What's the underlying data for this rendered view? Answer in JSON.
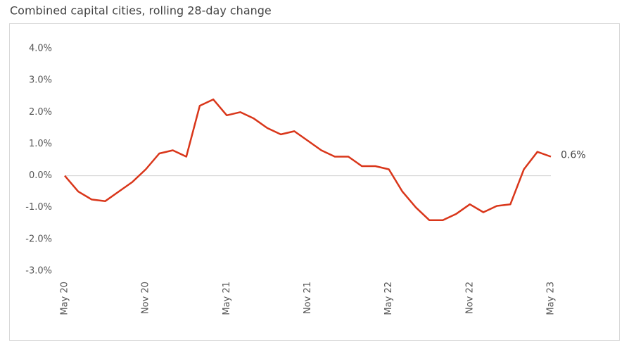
{
  "chart_data": {
    "type": "line",
    "title": "Combined capital cities, rolling 28-day change",
    "categories": [
      "May 20",
      null,
      null,
      null,
      null,
      null,
      "Nov 20",
      null,
      null,
      null,
      null,
      null,
      "May 21",
      null,
      null,
      null,
      null,
      null,
      "Nov 21",
      null,
      null,
      null,
      null,
      null,
      "May 22",
      null,
      null,
      null,
      null,
      null,
      "Nov 22",
      null,
      null,
      null,
      null,
      null,
      "May 23"
    ],
    "series": [
      {
        "name": "Combined capital cities",
        "color": "#d9361a",
        "values": [
          0.0,
          -0.5,
          -0.75,
          -0.8,
          -0.5,
          -0.2,
          0.2,
          0.7,
          0.8,
          0.6,
          2.2,
          2.4,
          1.9,
          2.0,
          1.8,
          1.5,
          1.3,
          1.4,
          1.1,
          0.8,
          0.6,
          0.6,
          0.3,
          0.3,
          0.2,
          -0.5,
          -1.0,
          -1.4,
          -1.4,
          -1.2,
          -0.9,
          -1.15,
          -0.95,
          -0.9,
          0.2,
          0.75,
          0.6
        ]
      }
    ],
    "end_label": "0.6%",
    "ylim": [
      -3,
      4
    ],
    "yticks": [
      {
        "value": -3,
        "label": "-3.0%"
      },
      {
        "value": -2,
        "label": "-2.0%"
      },
      {
        "value": -1,
        "label": "-1.0%"
      },
      {
        "value": 0,
        "label": "0.0%"
      },
      {
        "value": 1,
        "label": "1.0%"
      },
      {
        "value": 2,
        "label": "2.0%"
      },
      {
        "value": 3,
        "label": "3.0%"
      },
      {
        "value": 4,
        "label": "4.0%"
      }
    ],
    "grid": false
  }
}
